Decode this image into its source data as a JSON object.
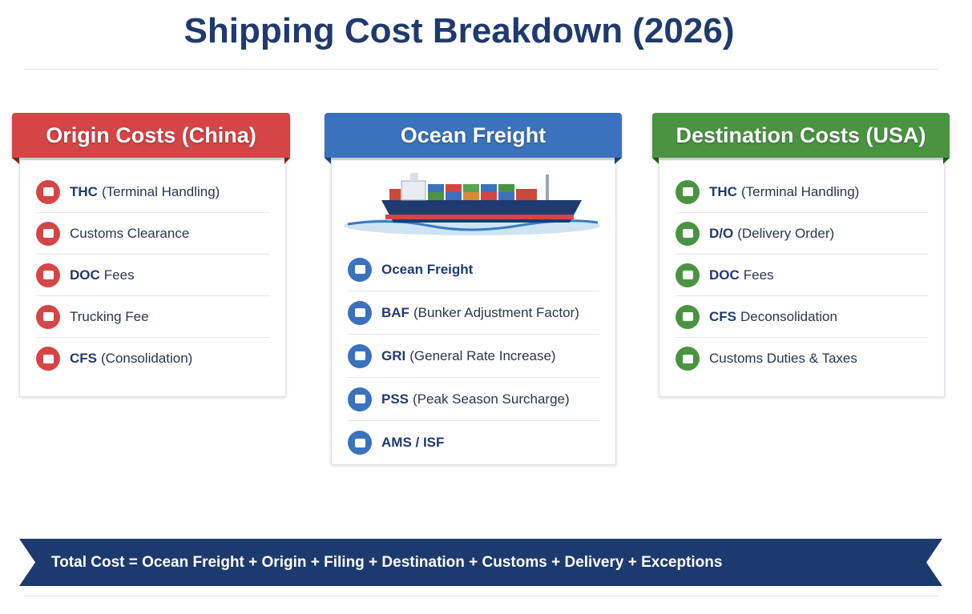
{
  "title": "Shipping Cost Breakdown (2026)",
  "columns": [
    {
      "header": "Origin Costs (China)",
      "items": [
        {
          "bold": "THC",
          "text": "(Terminal Handling)"
        },
        {
          "text": "Customs Clearance"
        },
        {
          "bold": "DOC",
          "text": "Fees"
        },
        {
          "text": "Trucking Fee"
        },
        {
          "bold": "CFS",
          "text": "(Consolidation)"
        }
      ]
    },
    {
      "header": "Ocean Freight",
      "items": [
        {
          "bold": "Ocean Freight"
        },
        {
          "bold": "BAF",
          "text": "(Bunker Adjustment Factor)"
        },
        {
          "bold": "GRI",
          "text": "(General Rate Increase)"
        },
        {
          "bold": "PSS",
          "text": "(Peak Season Surcharge)"
        },
        {
          "bold": "AMS / ISF"
        }
      ]
    },
    {
      "header": "Destination Costs (USA)",
      "items": [
        {
          "bold": "THC",
          "text": "(Terminal Handling)"
        },
        {
          "bold": "D/O",
          "text": "(Delivery Order)"
        },
        {
          "bold": "DOC",
          "text": "Fees"
        },
        {
          "bold": "CFS",
          "text": "Deconsolidation"
        },
        {
          "text": "Customs Duties & Taxes"
        }
      ]
    }
  ],
  "banner": "Total Cost = Ocean Freight + Origin + Filing + Destination + Customs + Delivery + Exceptions"
}
